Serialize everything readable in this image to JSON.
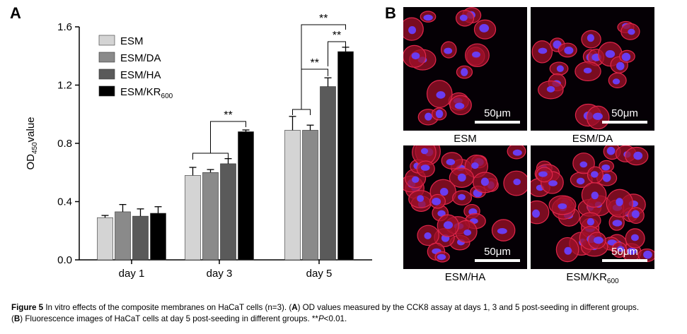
{
  "panel_a": {
    "letter": "A"
  },
  "panel_b": {
    "letter": "B",
    "images": [
      {
        "label": "ESM",
        "label_sub": "",
        "scale": "50μm"
      },
      {
        "label": "ESM/DA",
        "label_sub": "",
        "scale": "50μm"
      },
      {
        "label": "ESM/HA",
        "label_sub": "",
        "scale": "50μm"
      },
      {
        "label": "ESM/KR",
        "label_sub": "600",
        "scale": "50μm"
      }
    ]
  },
  "chart_data": {
    "type": "bar",
    "categories": [
      "day 1",
      "day 3",
      "day 5"
    ],
    "ylabel_main": "OD",
    "ylabel_sub": "450",
    "ylabel_tail": "value",
    "ylim": [
      0,
      1.6
    ],
    "yticks": [
      "0.0",
      "0.4",
      "0.8",
      "1.2",
      "1.6"
    ],
    "series": [
      {
        "name": "ESM",
        "name_sub": "",
        "color": "#d4d4d4",
        "values": [
          0.29,
          0.58,
          0.89
        ],
        "errors": [
          0.015,
          0.055,
          0.095
        ]
      },
      {
        "name": "ESM/DA",
        "name_sub": "",
        "color": "#8a8a8a",
        "values": [
          0.33,
          0.6,
          0.89
        ],
        "errors": [
          0.05,
          0.02,
          0.035
        ]
      },
      {
        "name": "ESM/HA",
        "name_sub": "",
        "color": "#5a5a5a",
        "values": [
          0.3,
          0.66,
          1.19
        ],
        "errors": [
          0.05,
          0.035,
          0.06
        ]
      },
      {
        "name": "ESM/KR",
        "name_sub": "600",
        "color": "#000000",
        "values": [
          0.32,
          0.88,
          1.43
        ],
        "errors": [
          0.045,
          0.012,
          0.03
        ]
      }
    ],
    "significance": [
      {
        "label": "**",
        "category": 1
      },
      {
        "label": "**",
        "category": 2
      },
      {
        "label": "**",
        "category": 2
      },
      {
        "label": "**",
        "category": 2
      }
    ]
  },
  "caption": {
    "label": "Figure 5",
    "text1": " In vitro effects of the composite membranes on HaCaT cells (n=3). (",
    "a": "A",
    "text2": ") OD values measured by the CCK8 assay at days 1, 3 and 5 post-seeding in different groups.",
    "b_open": "(",
    "b": "B",
    "text3": ") Fluorescence images of HaCaT cells at day 5 post-seeding in different groups. **",
    "p": "P",
    "text4": "<0.01."
  }
}
